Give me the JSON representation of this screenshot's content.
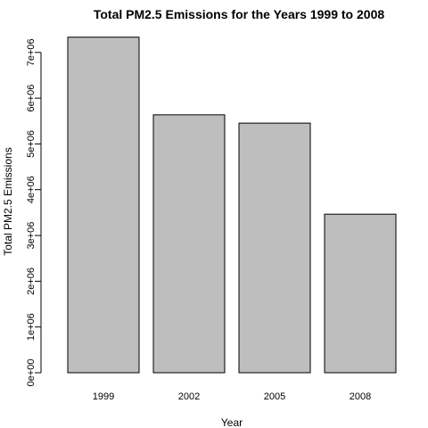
{
  "chart_data": {
    "type": "bar",
    "title": "Total PM2.5 Emissions for the Years 1999 to 2008",
    "xlabel": "Year",
    "ylabel": "Total PM2.5 Emissions",
    "categories": [
      "1999",
      "2002",
      "2005",
      "2008"
    ],
    "values": [
      7332967,
      5635780,
      5454703,
      3464206
    ],
    "ylim": [
      0,
      7600000
    ],
    "yticks": [
      0,
      1000000,
      2000000,
      3000000,
      4000000,
      5000000,
      6000000,
      7000000
    ],
    "ytick_labels": [
      "0e+00",
      "1e+06",
      "2e+06",
      "3e+06",
      "4e+06",
      "5e+06",
      "6e+06",
      "7e+06"
    ],
    "bar_color": "#bebebe",
    "grid": false,
    "legend": "none"
  }
}
